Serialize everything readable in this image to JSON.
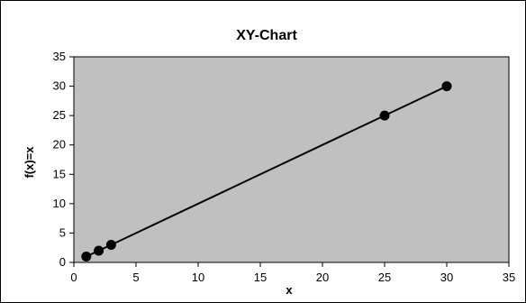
{
  "chart_data": {
    "type": "scatter",
    "title": "XY-Chart",
    "xlabel": "x",
    "ylabel": "f(x)=x",
    "xlim": [
      0,
      35
    ],
    "ylim": [
      0,
      35
    ],
    "xticks": [
      "0",
      "5",
      "10",
      "15",
      "20",
      "25",
      "30",
      "35"
    ],
    "yticks": [
      "0",
      "5",
      "10",
      "15",
      "20",
      "25",
      "30",
      "35"
    ],
    "grid": false,
    "legend": "none",
    "series": [
      {
        "x": [
          1,
          2,
          3,
          25,
          30
        ],
        "y": [
          1,
          2,
          3,
          25,
          30
        ],
        "line": true,
        "marker": "circle"
      }
    ],
    "colors": {
      "plot_background": "#c0c0c0",
      "line": "#000000",
      "marker": "#000000",
      "frame": "#000000"
    }
  }
}
